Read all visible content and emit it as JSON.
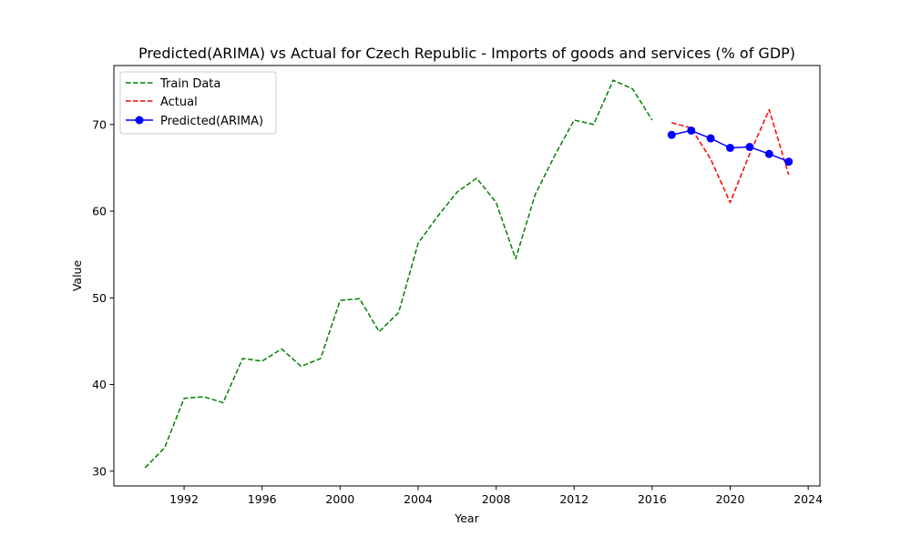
{
  "chart_data": {
    "type": "line",
    "title": "Predicted(ARIMA) vs Actual for Czech Republic - Imports of goods and services (% of GDP)",
    "xlabel": "Year",
    "ylabel": "Value",
    "xlim": [
      1988.4,
      2024.6
    ],
    "ylim": [
      28.3,
      76.8
    ],
    "x_ticks": [
      1992,
      1996,
      2000,
      2004,
      2008,
      2012,
      2016,
      2020,
      2024
    ],
    "y_ticks": [
      30,
      40,
      50,
      60,
      70
    ],
    "legend_position": "top-left",
    "grid": false,
    "series": [
      {
        "name": "Train Data",
        "color": "#008000",
        "style": "dashed",
        "marker": "none",
        "x": [
          1990,
          1991,
          1992,
          1993,
          1994,
          1995,
          1996,
          1997,
          1998,
          1999,
          2000,
          2001,
          2002,
          2003,
          2004,
          2005,
          2006,
          2007,
          2008,
          2009,
          2010,
          2011,
          2012,
          2013,
          2014,
          2015,
          2016
        ],
        "y": [
          30.4,
          32.7,
          38.4,
          38.6,
          37.9,
          43.0,
          42.7,
          44.1,
          42.1,
          43.0,
          49.7,
          49.9,
          46.1,
          48.3,
          56.3,
          59.4,
          62.2,
          63.8,
          61.0,
          54.5,
          61.9,
          66.4,
          70.5,
          70.0,
          75.1,
          74.1,
          70.5
        ]
      },
      {
        "name": "Actual",
        "color": "#ff0000",
        "style": "dashed",
        "marker": "none",
        "x": [
          2017,
          2018,
          2019,
          2020,
          2021,
          2022,
          2023
        ],
        "y": [
          70.2,
          69.6,
          66.0,
          61.0,
          66.6,
          71.7,
          64.2
        ]
      },
      {
        "name": "Predicted(ARIMA)",
        "color": "#0000ff",
        "style": "solid",
        "marker": "circle",
        "x": [
          2017,
          2018,
          2019,
          2020,
          2021,
          2022,
          2023
        ],
        "y": [
          68.8,
          69.3,
          68.4,
          67.3,
          67.4,
          66.6,
          65.7
        ]
      }
    ]
  }
}
